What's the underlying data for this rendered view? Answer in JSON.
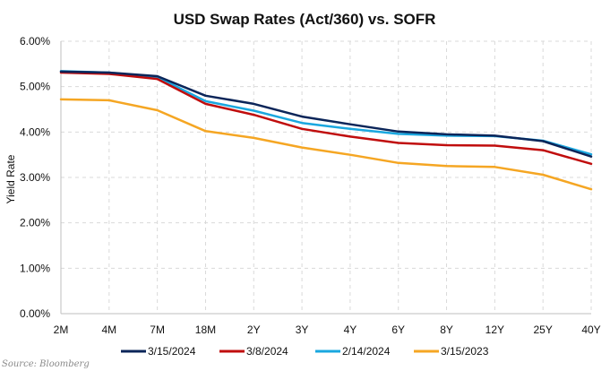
{
  "chart_data": {
    "type": "line",
    "title": "USD Swap Rates (Act/360) vs. SOFR",
    "xlabel": "",
    "ylabel": "Yield Rate",
    "categories": [
      "2M",
      "4M",
      "7M",
      "18M",
      "2Y",
      "3Y",
      "4Y",
      "6Y",
      "8Y",
      "12Y",
      "25Y",
      "40Y"
    ],
    "ylim": [
      0,
      6
    ],
    "yticks": [
      "0.00%",
      "1.00%",
      "2.00%",
      "3.00%",
      "4.00%",
      "5.00%",
      "6.00%"
    ],
    "grid": true,
    "legend_position": "bottom",
    "series": [
      {
        "name": "3/15/2024",
        "color": "#0b2559",
        "values": [
          5.33,
          5.31,
          5.23,
          4.8,
          4.62,
          4.34,
          4.17,
          4.01,
          3.95,
          3.92,
          3.8,
          3.46
        ]
      },
      {
        "name": "3/8/2024",
        "color": "#c00d0d",
        "values": [
          5.31,
          5.28,
          5.17,
          4.62,
          4.38,
          4.07,
          3.9,
          3.76,
          3.71,
          3.7,
          3.6,
          3.3
        ]
      },
      {
        "name": "2/14/2024",
        "color": "#1aa7df",
        "values": [
          5.34,
          5.31,
          5.21,
          4.68,
          4.47,
          4.2,
          4.07,
          3.96,
          3.92,
          3.91,
          3.81,
          3.51
        ]
      },
      {
        "name": "3/15/2023",
        "color": "#f5a623",
        "values": [
          4.72,
          4.7,
          4.48,
          4.02,
          3.87,
          3.66,
          3.5,
          3.32,
          3.25,
          3.23,
          3.06,
          2.74
        ]
      }
    ]
  },
  "source": "Source: Bloomberg"
}
